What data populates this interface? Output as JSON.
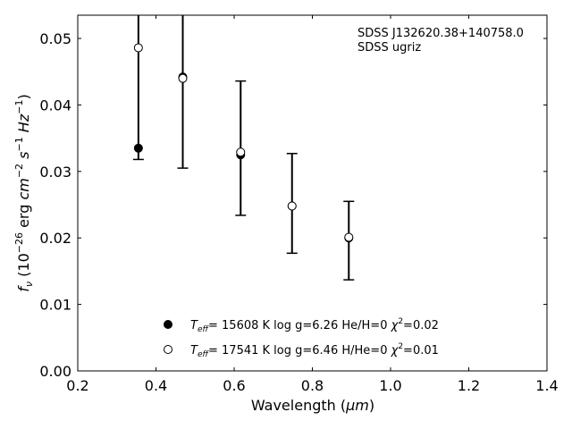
{
  "chart_data": {
    "type": "scatter",
    "annotations": [
      "SDSS J132620.38+140758.0",
      "SDSS ugriz"
    ],
    "xlabel": "Wavelength (μm)",
    "xlabel_parts": {
      "pre": "Wavelength (",
      "unit": "μm",
      "post": ")"
    },
    "ylabel": "f_ν (10^-26 erg cm^-2 s^-1 Hz^-1)",
    "xlim": [
      0.2,
      1.4
    ],
    "ylim": [
      0.0,
      0.0535
    ],
    "xticks": [
      0.2,
      0.4,
      0.6,
      0.8,
      1.0,
      1.2,
      1.4
    ],
    "xtick_labels": [
      "0.2",
      "0.4",
      "0.6",
      "0.8",
      "1.0",
      "1.2",
      "1.4"
    ],
    "yticks": [
      0.0,
      0.01,
      0.02,
      0.03,
      0.04,
      0.05
    ],
    "ytick_labels": [
      "0.00",
      "0.01",
      "0.02",
      "0.03",
      "0.04",
      "0.05"
    ],
    "grid": false,
    "legend_position": "bottom-center",
    "observed": {
      "x": [
        0.3551,
        0.4686,
        0.6166,
        0.748,
        0.8932
      ],
      "y": [
        0.0335,
        0.0442,
        0.0327,
        0.0248,
        0.02
      ],
      "err_low": [
        0.0318,
        0.0305,
        0.0234,
        0.0177,
        0.0137
      ],
      "err_high": [
        0.0535,
        0.0535,
        0.0436,
        0.0327,
        0.0255
      ]
    },
    "series": [
      {
        "name": "T_eff= 15608 K  log g=6.26  He/H=0  χ²=0.02",
        "legend": {
          "teff": "15608",
          "logg": "6.26",
          "abund": "He/H=0",
          "chi2": "0.02"
        },
        "marker": "filled",
        "x": [
          0.3551,
          0.4686,
          0.6166,
          0.748,
          0.8932
        ],
        "y": [
          0.0335,
          0.0442,
          0.0325,
          0.0248,
          0.02
        ]
      },
      {
        "name": "T_eff= 17541 K  log g=6.46  H/He=0  χ²=0.01",
        "legend": {
          "teff": "17541",
          "logg": "6.46",
          "abund": "H/He=0",
          "chi2": "0.01"
        },
        "marker": "open",
        "x": [
          0.3551,
          0.4686,
          0.6166,
          0.748,
          0.8932
        ],
        "y": [
          0.0486,
          0.044,
          0.0329,
          0.0248,
          0.0201
        ]
      }
    ]
  }
}
